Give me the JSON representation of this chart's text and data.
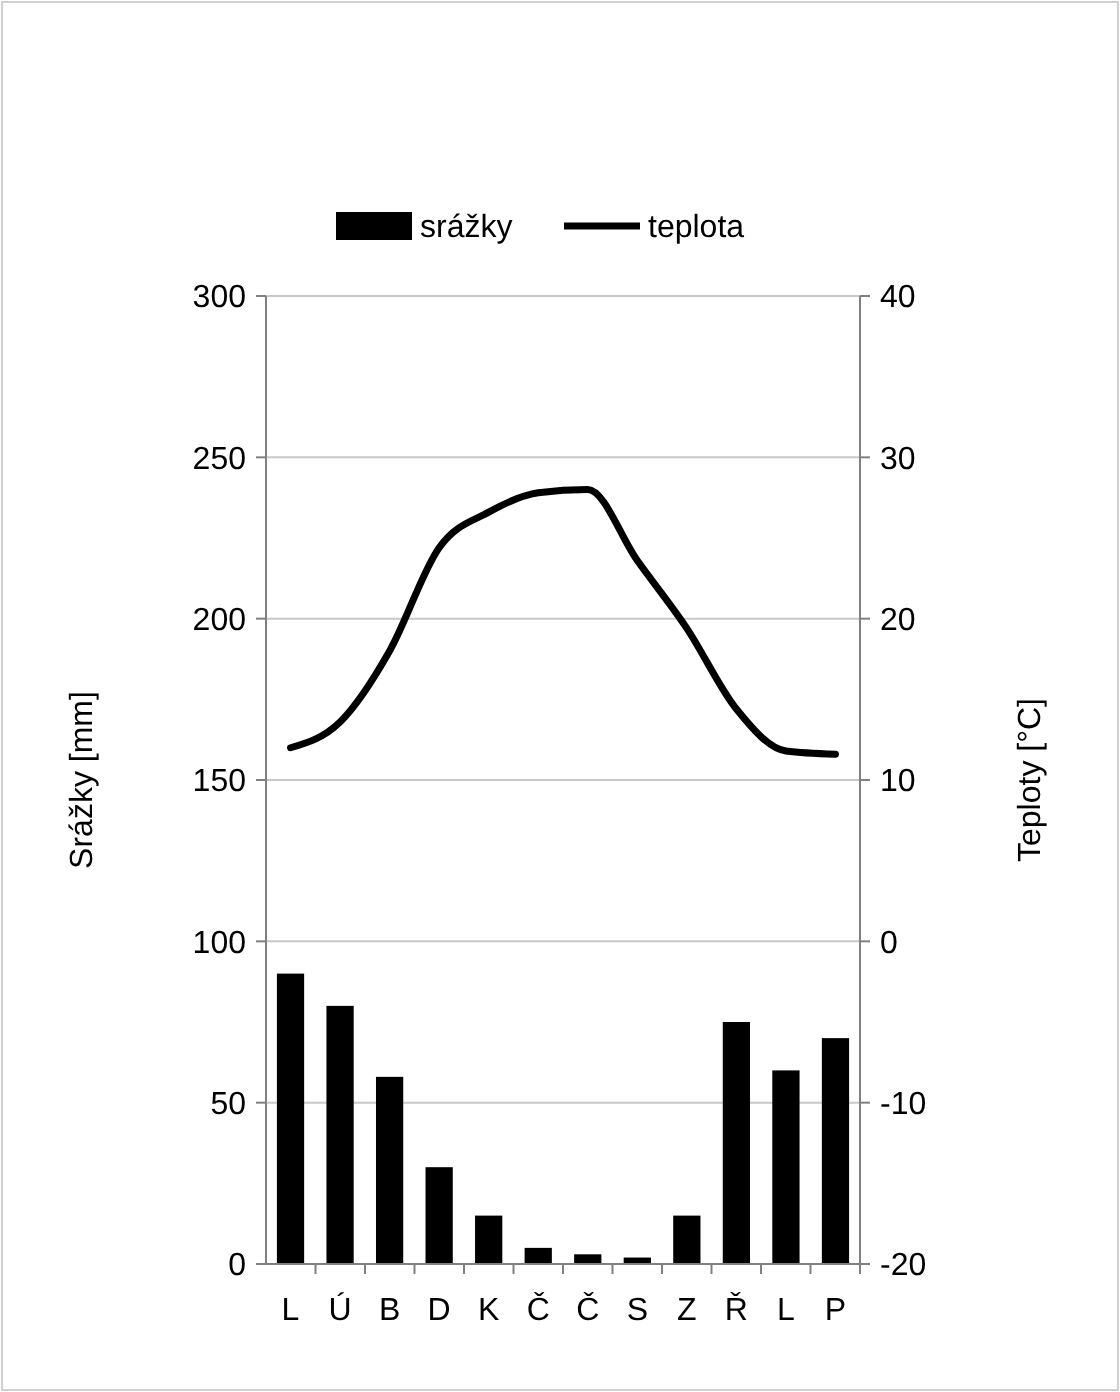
{
  "chart_data": {
    "type": "bar",
    "categories": [
      "L",
      "Ú",
      "B",
      "D",
      "K",
      "Č",
      "Č",
      "S",
      "Z",
      "Ř",
      "L",
      "P"
    ],
    "series": [
      {
        "name": "srážky",
        "color": "#000000",
        "values": [
          90,
          80,
          58,
          30,
          15,
          5,
          3,
          2,
          15,
          75,
          60,
          70
        ]
      },
      {
        "name": "teplota",
        "type": "line",
        "axis": "y2",
        "color": "#000000",
        "values": [
          12,
          13.6,
          18,
          24.4,
          26.6,
          27.8,
          28,
          23.6,
          19.4,
          14.4,
          11.8,
          11.6
        ]
      }
    ],
    "ylabel": "Srážky [mm]",
    "y2label": "Teploty [°C]",
    "ylim": [
      0,
      300
    ],
    "yticks": [
      0,
      50,
      100,
      150,
      200,
      250,
      300
    ],
    "y2lim": [
      -20,
      40
    ],
    "y2ticks": [
      -20,
      -10,
      0,
      10,
      20,
      30,
      40
    ],
    "grid": "y",
    "legend": "top",
    "marker": "none",
    "line_style": "solid"
  }
}
